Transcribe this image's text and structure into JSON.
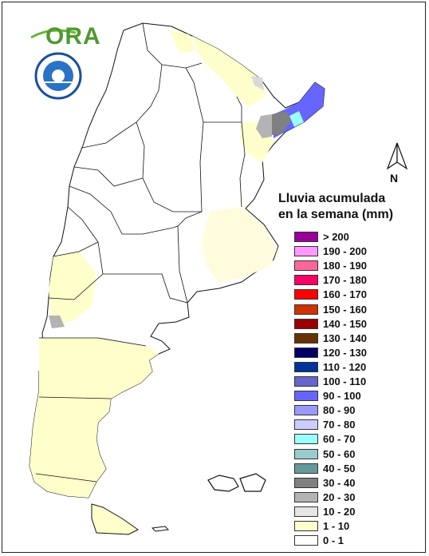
{
  "legend": {
    "title_line1": "Lluvia acumulada",
    "title_line2": "en la semana (mm)",
    "items": [
      {
        "label": "> 200",
        "color": "#990099"
      },
      {
        "label": "190 - 200",
        "color": "#ff99ff"
      },
      {
        "label": "180 - 190",
        "color": "#ff6699"
      },
      {
        "label": "170 - 180",
        "color": "#ff0066"
      },
      {
        "label": "160 - 170",
        "color": "#ff0000"
      },
      {
        "label": "150 - 160",
        "color": "#cc3300"
      },
      {
        "label": "140 - 150",
        "color": "#990000"
      },
      {
        "label": "130 - 140",
        "color": "#663300"
      },
      {
        "label": "120 - 130",
        "color": "#000066"
      },
      {
        "label": "110 - 120",
        "color": "#003399"
      },
      {
        "label": "100 - 110",
        "color": "#6666cc"
      },
      {
        "label": "90 - 100",
        "color": "#6666ff"
      },
      {
        "label": "80 - 90",
        "color": "#9999ff"
      },
      {
        "label": "70 - 80",
        "color": "#ccccff"
      },
      {
        "label": "60 - 70",
        "color": "#99ffff"
      },
      {
        "label": "50 - 60",
        "color": "#99cccc"
      },
      {
        "label": "40 - 50",
        "color": "#669999"
      },
      {
        "label": "30 - 40",
        "color": "#808080"
      },
      {
        "label": "20 - 30",
        "color": "#b3b3b3"
      },
      {
        "label": "10 - 20",
        "color": "#e6e6e6"
      },
      {
        "label": "1 - 10",
        "color": "#ffffcc"
      },
      {
        "label": "0 - 1",
        "color": "#ffffff"
      }
    ]
  },
  "logos": {
    "ora_text": "ORA",
    "smn_seal_text": "SERVICIO METEOROLOGICO NACIONAL ARGENTINA"
  },
  "north_arrow": {
    "label": "N"
  },
  "colors": {
    "land": "#ffffff",
    "low_rain": "#ffffcc",
    "border": "#111111"
  }
}
